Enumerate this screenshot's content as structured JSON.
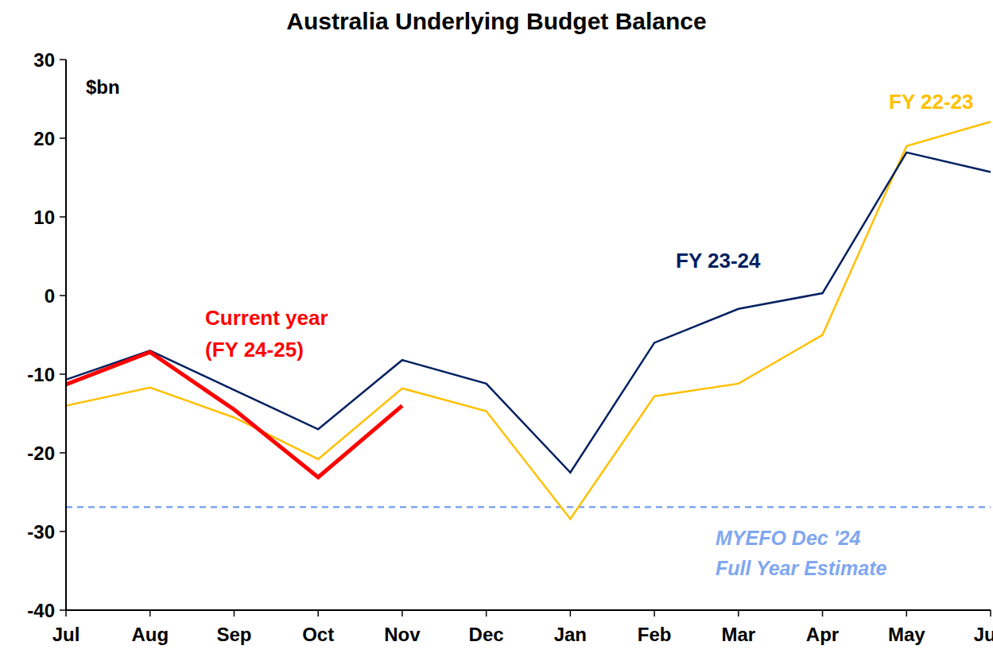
{
  "chart_data": {
    "type": "line",
    "title": "Australia Underlying Budget Balance",
    "y_label": "$bn",
    "categories": [
      "Jul",
      "Aug",
      "Sep",
      "Oct",
      "Nov",
      "Dec",
      "Jan",
      "Feb",
      "Mar",
      "Apr",
      "May",
      "Jun"
    ],
    "series": [
      {
        "name": "FY 22-23",
        "color": "#FFC000",
        "values": [
          -14,
          -11.7,
          -15.5,
          -20.8,
          -11.8,
          -14.7,
          -28.4,
          -12.8,
          -11.2,
          -5,
          19,
          22.1
        ]
      },
      {
        "name": "FY 23-24",
        "color": "#002060",
        "values": [
          -10.7,
          -7,
          -12,
          -17,
          -8.2,
          -11.2,
          -22.5,
          -6,
          -1.7,
          0.3,
          18.2,
          15.7
        ]
      },
      {
        "name": "Current year (FY 24-25)",
        "color": "#FF0000",
        "values": [
          -11.3,
          -7.2,
          -14.5,
          -23.1,
          -14,
          null,
          null,
          null,
          null,
          null,
          null,
          null
        ]
      }
    ],
    "reference_line": {
      "value": -26.9,
      "color": "#7FA7F0",
      "label_lines": [
        "MYEFO Dec '24",
        "Full Year Estimate"
      ]
    },
    "ylim": [
      -40,
      30
    ],
    "yticks": [
      -40,
      -30,
      -20,
      -10,
      0,
      10,
      20,
      30
    ],
    "grid": false
  }
}
